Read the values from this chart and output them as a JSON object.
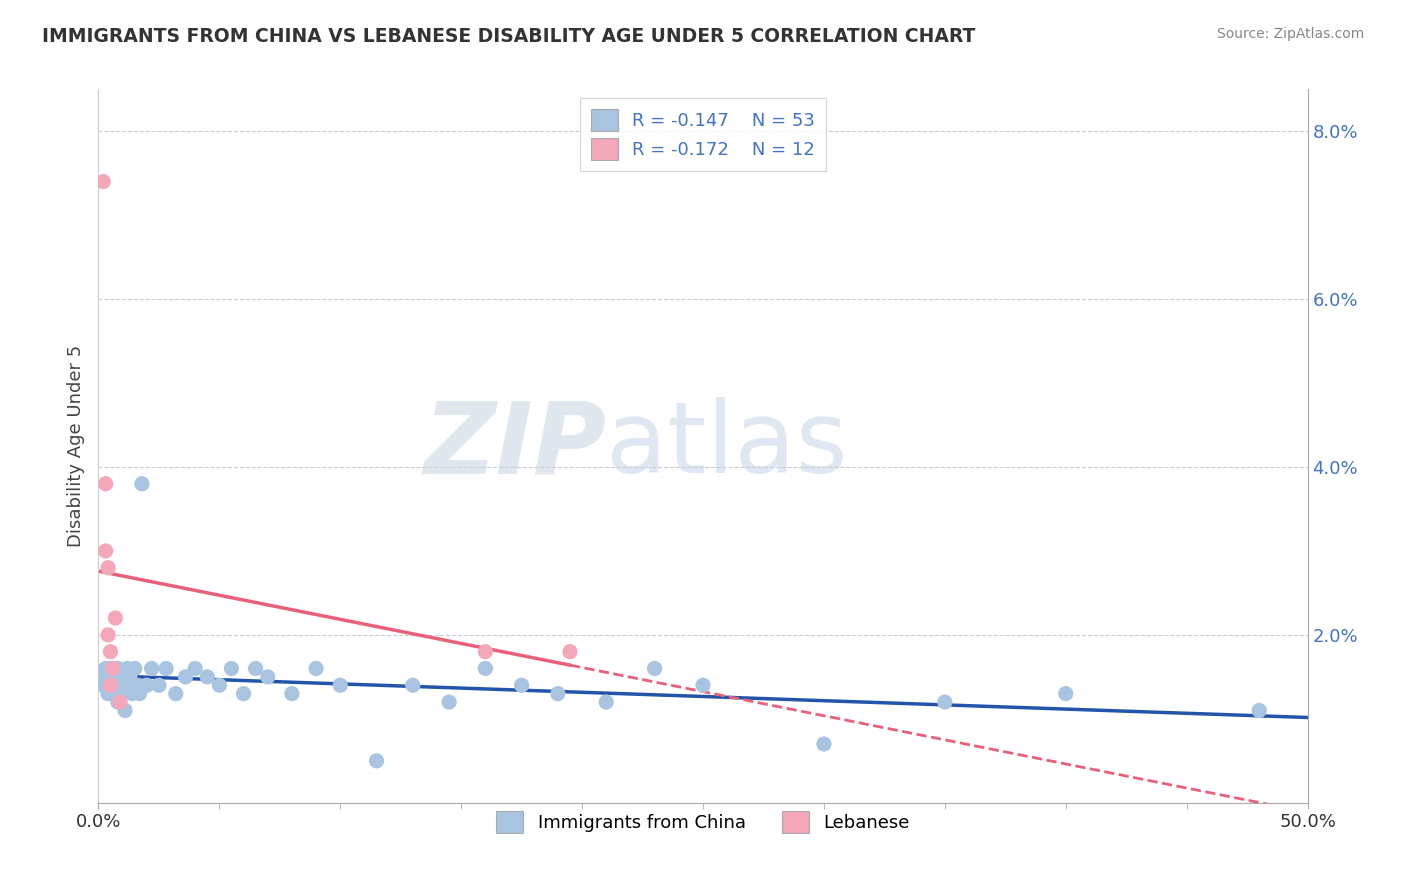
{
  "title": "IMMIGRANTS FROM CHINA VS LEBANESE DISABILITY AGE UNDER 5 CORRELATION CHART",
  "source": "Source: ZipAtlas.com",
  "ylabel": "Disability Age Under 5",
  "legend_china": "Immigrants from China",
  "legend_lebanese": "Lebanese",
  "r_china": -0.147,
  "n_china": 53,
  "r_lebanese": -0.172,
  "n_lebanese": 12,
  "china_color": "#a8c4e0",
  "lebanese_color": "#f4a7b9",
  "china_line_color": "#2255aa",
  "lebanese_line_color": "#e8607a",
  "background_color": "#ffffff",
  "xlim": [
    0.0,
    0.5
  ],
  "ylim": [
    0.0,
    0.085
  ],
  "china_x": [
    0.002,
    0.003,
    0.003,
    0.004,
    0.004,
    0.005,
    0.005,
    0.006,
    0.006,
    0.007,
    0.007,
    0.008,
    0.008,
    0.009,
    0.01,
    0.01,
    0.011,
    0.012,
    0.013,
    0.014,
    0.015,
    0.016,
    0.017,
    0.018,
    0.02,
    0.022,
    0.025,
    0.028,
    0.032,
    0.036,
    0.04,
    0.045,
    0.05,
    0.055,
    0.06,
    0.065,
    0.07,
    0.08,
    0.09,
    0.1,
    0.115,
    0.13,
    0.145,
    0.16,
    0.175,
    0.19,
    0.21,
    0.23,
    0.25,
    0.3,
    0.35,
    0.4,
    0.48
  ],
  "china_y": [
    0.014,
    0.015,
    0.016,
    0.013,
    0.016,
    0.014,
    0.015,
    0.013,
    0.016,
    0.014,
    0.015,
    0.012,
    0.016,
    0.013,
    0.014,
    0.015,
    0.011,
    0.016,
    0.015,
    0.013,
    0.016,
    0.014,
    0.013,
    0.038,
    0.014,
    0.016,
    0.014,
    0.016,
    0.013,
    0.015,
    0.016,
    0.015,
    0.014,
    0.016,
    0.013,
    0.016,
    0.015,
    0.013,
    0.016,
    0.014,
    0.005,
    0.014,
    0.012,
    0.016,
    0.014,
    0.013,
    0.012,
    0.016,
    0.014,
    0.007,
    0.012,
    0.013,
    0.011
  ],
  "lebanese_x": [
    0.002,
    0.003,
    0.003,
    0.004,
    0.004,
    0.005,
    0.005,
    0.006,
    0.007,
    0.009,
    0.16,
    0.195
  ],
  "lebanese_y": [
    0.074,
    0.038,
    0.03,
    0.028,
    0.02,
    0.018,
    0.014,
    0.016,
    0.022,
    0.012,
    0.018,
    0.018
  ],
  "lebanese_line_start": 0.0,
  "lebanese_line_solid_end": 0.195,
  "lebanese_line_dashed_end": 0.5
}
